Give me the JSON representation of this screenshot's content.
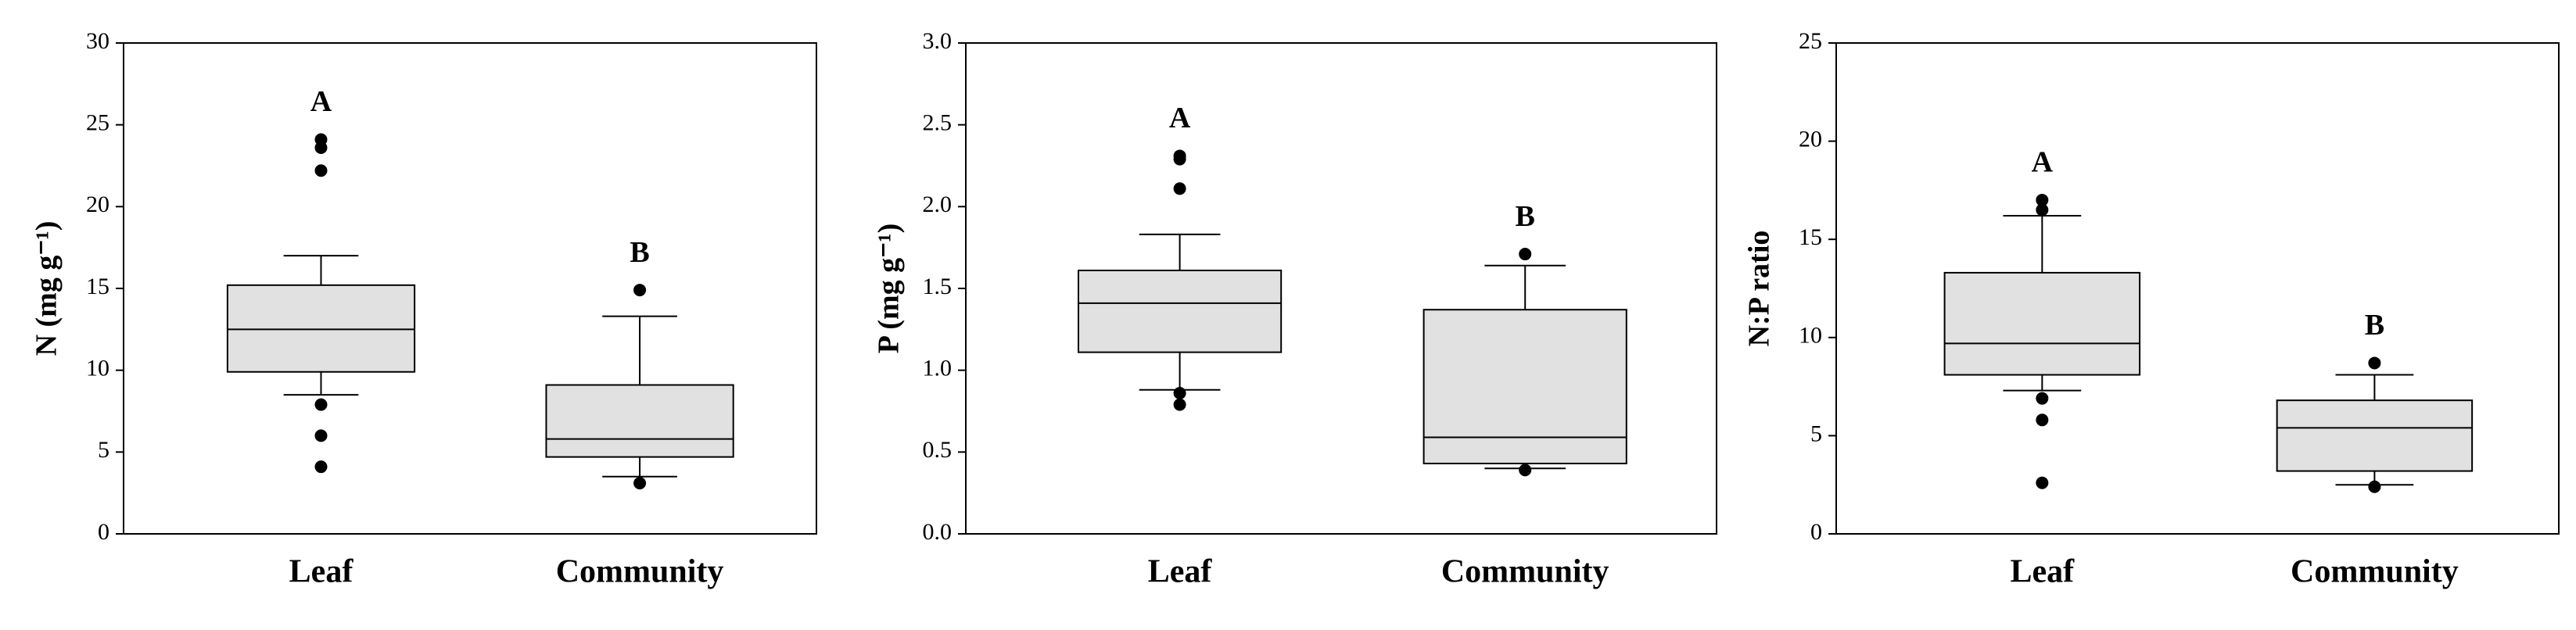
{
  "chart_data": [
    {
      "type": "box",
      "y_label": "N (mg g⁻¹)",
      "categories": [
        "Leaf",
        "Community"
      ],
      "letters": [
        "A",
        "B"
      ],
      "ylim": [
        0,
        30
      ],
      "yticks": [
        0,
        5,
        10,
        15,
        20,
        25,
        30
      ],
      "color": "#e1e1e1",
      "boxes": [
        {
          "whisker_low": 8.5,
          "q1": 9.9,
          "median": 12.5,
          "q3": 15.2,
          "whisker_high": 17.0,
          "outliers": [
            24.1,
            23.6,
            22.2,
            7.9,
            6.0,
            4.1
          ]
        },
        {
          "whisker_low": 3.5,
          "q1": 4.7,
          "median": 5.8,
          "q3": 9.1,
          "whisker_high": 13.3,
          "outliers": [
            14.9,
            3.1
          ]
        }
      ]
    },
    {
      "type": "box",
      "y_label": "P (mg g⁻¹)",
      "categories": [
        "Leaf",
        "Community"
      ],
      "letters": [
        "A",
        "B"
      ],
      "ylim": [
        0,
        3
      ],
      "yticks": [
        {
          "value": 0,
          "label": "0.0"
        },
        0.5,
        {
          "value": 1,
          "label": "1.0"
        },
        1.5,
        {
          "value": 2,
          "label": "2.0"
        },
        2.5,
        {
          "value": 3,
          "label": "3.0"
        }
      ],
      "color": "#e1e1e1",
      "boxes": [
        {
          "whisker_low": 0.88,
          "q1": 1.11,
          "median": 1.41,
          "q3": 1.61,
          "whisker_high": 1.83,
          "outliers": [
            2.31,
            2.29,
            2.11,
            0.86,
            0.79
          ]
        },
        {
          "whisker_low": 0.4,
          "q1": 0.43,
          "median": 0.59,
          "q3": 1.37,
          "whisker_high": 1.64,
          "outliers": [
            1.71,
            0.39
          ]
        }
      ]
    },
    {
      "type": "box",
      "y_label": "N:P ratio",
      "categories": [
        "Leaf",
        "Community"
      ],
      "letters": [
        "A",
        "B"
      ],
      "ylim": [
        0,
        25
      ],
      "yticks": [
        0,
        5,
        10,
        15,
        20,
        25
      ],
      "color": "#e1e1e1",
      "boxes": [
        {
          "whisker_low": 7.3,
          "q1": 8.1,
          "median": 9.7,
          "q3": 13.3,
          "whisker_high": 16.2,
          "outliers": [
            17.0,
            16.5,
            6.9,
            5.8,
            2.6
          ]
        },
        {
          "whisker_low": 2.5,
          "q1": 3.2,
          "median": 5.4,
          "q3": 6.8,
          "whisker_high": 8.1,
          "outliers": [
            8.7,
            2.4
          ]
        }
      ]
    }
  ]
}
